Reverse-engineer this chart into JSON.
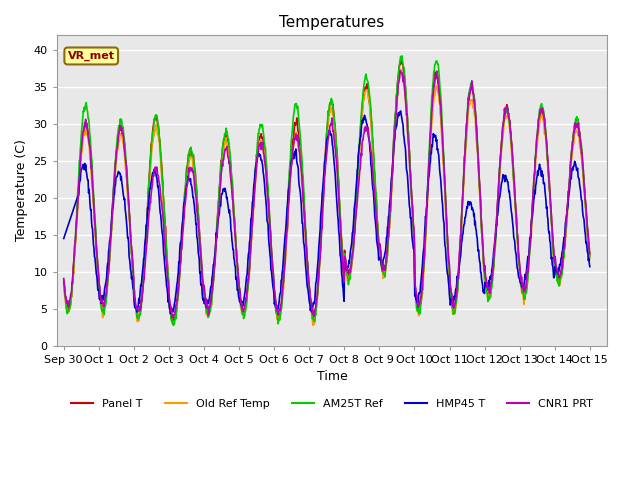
{
  "title": "Temperatures",
  "xlabel": "Time",
  "ylabel": "Temperature (C)",
  "ylim": [
    0,
    42
  ],
  "yticks": [
    0,
    5,
    10,
    15,
    20,
    25,
    30,
    35,
    40
  ],
  "x_tick_labels": [
    "Sep 30",
    "Oct 1",
    "Oct 2",
    "Oct 3",
    "Oct 4",
    "Oct 5",
    "Oct 6",
    "Oct 7",
    "Oct 8",
    "Oct 9",
    "Oct 10",
    "Oct 11",
    "Oct 12",
    "Oct 13",
    "Oct 14",
    "Oct 15"
  ],
  "x_tick_positions": [
    0,
    1,
    2,
    3,
    4,
    5,
    6,
    7,
    8,
    9,
    10,
    11,
    12,
    13,
    14,
    15
  ],
  "series": [
    {
      "label": "Panel T",
      "color": "#cc0000",
      "lw": 1.2
    },
    {
      "label": "Old Ref Temp",
      "color": "#ff9900",
      "lw": 1.2
    },
    {
      "label": "AM25T Ref",
      "color": "#00cc00",
      "lw": 1.2
    },
    {
      "label": "HMP45 T",
      "color": "#0000cc",
      "lw": 1.2
    },
    {
      "label": "CNR1 PRT",
      "color": "#bb00bb",
      "lw": 1.2
    }
  ],
  "annotation_text": "VR_met",
  "bg_color": "#e8e8e8",
  "fig_bg_color": "#ffffff",
  "grid_color": "#ffffff",
  "title_fontsize": 11,
  "axis_label_fontsize": 9,
  "tick_fontsize": 8,
  "legend_fontsize": 8
}
